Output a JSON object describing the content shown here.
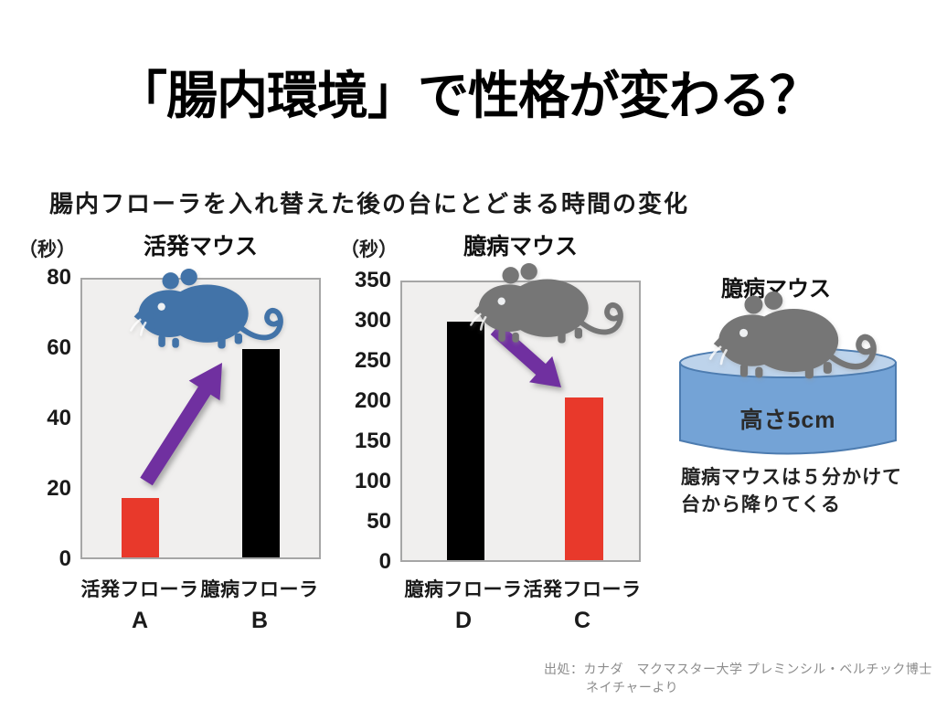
{
  "slide": {
    "title": "「腸内環境」で性格が変わる？",
    "subtitle": "腸内フローラを入れ替えた後の台にとどまる時間の変化",
    "source_line1": "出処：カナダ　マクマスター大学 プレミンシル・ベルチック博士",
    "source_line2": "ネイチャーより"
  },
  "chart_data": [
    {
      "type": "bar",
      "title": "活発マウス",
      "unit_label": "（秒）",
      "ylabel": "（秒）",
      "ylim": [
        0,
        80
      ],
      "yticks": [
        "80",
        "60",
        "40",
        "20",
        "0"
      ],
      "categories": [
        {
          "name": "活発フローラ",
          "letter": "A"
        },
        {
          "name": "臆病フローラ",
          "letter": "B"
        }
      ],
      "values": [
        17,
        60
      ],
      "bar_colors": [
        "#e8392b",
        "#000000"
      ],
      "mouse_icon_color": "#4273a8",
      "arrow_direction": "up-right",
      "grid": false,
      "legend": "none"
    },
    {
      "type": "bar",
      "title": "臆病マウス",
      "unit_label": "（秒）",
      "ylabel": "（秒）",
      "ylim": [
        0,
        350
      ],
      "yticks": [
        "350",
        "300",
        "250",
        "200",
        "150",
        "100",
        "50",
        "0"
      ],
      "categories": [
        {
          "name": "臆病フローラ",
          "letter": "D"
        },
        {
          "name": "活発フローラ",
          "letter": "C"
        }
      ],
      "values": [
        300,
        205
      ],
      "bar_colors": [
        "#000000",
        "#e8392b"
      ],
      "mouse_icon_color": "#767676",
      "arrow_direction": "down-right",
      "grid": false,
      "legend": "none"
    }
  ],
  "illustration": {
    "title": "臆病マウス",
    "platform_label": "高さ5cm",
    "caption_line1": "臆病マウスは５分かけて",
    "caption_line2": "台から降りてくる",
    "mouse_icon_color": "#767676",
    "platform_top_color": "#bdd3eb",
    "platform_body_color": "#74a3d6",
    "platform_outline_color": "#4d7cb0"
  },
  "colors": {
    "accent_red": "#e8392b",
    "bar_black": "#000000",
    "arrow_purple": "#7030a0",
    "plot_background": "#f0efee",
    "plot_border": "#a6a6a6",
    "source_text": "#8c8c8c"
  }
}
